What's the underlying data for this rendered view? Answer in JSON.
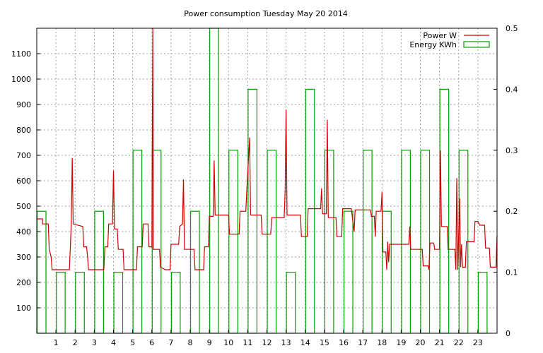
{
  "chart_data": {
    "type": "line",
    "title": "Power consumption Tuesday May 20 2014",
    "xlabel": "",
    "ylabel": "",
    "y2label": "",
    "xlim": [
      0,
      24
    ],
    "ylim": [
      0,
      1200
    ],
    "y2lim": [
      0,
      0.5
    ],
    "grid": true,
    "legend_position": "top-right",
    "x_ticks": [
      1,
      2,
      3,
      4,
      5,
      6,
      7,
      8,
      9,
      10,
      11,
      12,
      13,
      14,
      15,
      16,
      17,
      18,
      19,
      20,
      21,
      22,
      23
    ],
    "y_ticks": [
      100,
      200,
      300,
      400,
      500,
      600,
      700,
      800,
      900,
      1000,
      1100
    ],
    "y2_ticks": [
      0,
      0.1,
      0.2,
      0.3,
      0.4,
      0.5
    ],
    "series": [
      {
        "name": "Power W",
        "axis": "y",
        "color": "#d00000",
        "points": [
          [
            0,
            450
          ],
          [
            0.3,
            450
          ],
          [
            0.3,
            430
          ],
          [
            0.6,
            430
          ],
          [
            0.65,
            330
          ],
          [
            0.75,
            300
          ],
          [
            0.8,
            250
          ],
          [
            1.7,
            250
          ],
          [
            1.75,
            340
          ],
          [
            1.8,
            430
          ],
          [
            1.85,
            690
          ],
          [
            1.9,
            430
          ],
          [
            2.4,
            420
          ],
          [
            2.45,
            340
          ],
          [
            2.6,
            340
          ],
          [
            2.65,
            300
          ],
          [
            2.7,
            250
          ],
          [
            3.5,
            250
          ],
          [
            3.55,
            340
          ],
          [
            3.7,
            340
          ],
          [
            3.75,
            430
          ],
          [
            3.95,
            430
          ],
          [
            4.0,
            640
          ],
          [
            4.05,
            410
          ],
          [
            4.2,
            410
          ],
          [
            4.25,
            330
          ],
          [
            4.5,
            330
          ],
          [
            4.55,
            250
          ],
          [
            5.2,
            250
          ],
          [
            5.25,
            340
          ],
          [
            5.5,
            340
          ],
          [
            5.55,
            430
          ],
          [
            5.8,
            430
          ],
          [
            5.85,
            340
          ],
          [
            6.0,
            340
          ],
          [
            6.05,
            1200
          ],
          [
            6.08,
            330
          ],
          [
            6.4,
            330
          ],
          [
            6.45,
            260
          ],
          [
            6.7,
            250
          ],
          [
            6.95,
            250
          ],
          [
            7.0,
            350
          ],
          [
            7.4,
            350
          ],
          [
            7.45,
            420
          ],
          [
            7.6,
            430
          ],
          [
            7.65,
            605
          ],
          [
            7.7,
            330
          ],
          [
            8.2,
            330
          ],
          [
            8.25,
            250
          ],
          [
            8.7,
            250
          ],
          [
            8.75,
            340
          ],
          [
            8.95,
            340
          ],
          [
            9.0,
            460
          ],
          [
            9.2,
            460
          ],
          [
            9.25,
            680
          ],
          [
            9.3,
            465
          ],
          [
            10.0,
            465
          ],
          [
            10.05,
            390
          ],
          [
            10.55,
            390
          ],
          [
            10.6,
            480
          ],
          [
            10.9,
            480
          ],
          [
            10.95,
            560
          ],
          [
            11.1,
            770
          ],
          [
            11.15,
            465
          ],
          [
            11.7,
            465
          ],
          [
            11.75,
            390
          ],
          [
            12.2,
            390
          ],
          [
            12.25,
            455
          ],
          [
            12.9,
            455
          ],
          [
            12.95,
            560
          ],
          [
            13.0,
            880
          ],
          [
            13.05,
            465
          ],
          [
            13.75,
            465
          ],
          [
            13.8,
            380
          ],
          [
            14.1,
            380
          ],
          [
            14.15,
            490
          ],
          [
            14.8,
            490
          ],
          [
            14.85,
            570
          ],
          [
            14.9,
            470
          ],
          [
            15.1,
            470
          ],
          [
            15.15,
            840
          ],
          [
            15.2,
            455
          ],
          [
            15.6,
            455
          ],
          [
            15.65,
            380
          ],
          [
            15.9,
            380
          ],
          [
            15.95,
            490
          ],
          [
            16.4,
            490
          ],
          [
            16.45,
            460
          ],
          [
            16.55,
            400
          ],
          [
            16.6,
            485
          ],
          [
            17.4,
            485
          ],
          [
            17.45,
            460
          ],
          [
            17.6,
            460
          ],
          [
            17.65,
            380
          ],
          [
            17.7,
            480
          ],
          [
            17.95,
            480
          ],
          [
            18.0,
            555
          ],
          [
            18.05,
            320
          ],
          [
            18.2,
            320
          ],
          [
            18.25,
            250
          ],
          [
            18.3,
            360
          ],
          [
            18.35,
            280
          ],
          [
            18.4,
            350
          ],
          [
            19.4,
            350
          ],
          [
            19.45,
            420
          ],
          [
            19.5,
            330
          ],
          [
            20.1,
            330
          ],
          [
            20.15,
            265
          ],
          [
            20.4,
            265
          ],
          [
            20.45,
            250
          ],
          [
            20.5,
            355
          ],
          [
            20.7,
            355
          ],
          [
            20.75,
            330
          ],
          [
            21.0,
            330
          ],
          [
            21.05,
            720
          ],
          [
            21.1,
            420
          ],
          [
            21.4,
            420
          ],
          [
            21.45,
            330
          ],
          [
            21.8,
            330
          ],
          [
            21.85,
            250
          ],
          [
            21.9,
            610
          ],
          [
            21.95,
            250
          ],
          [
            22.05,
            530
          ],
          [
            22.1,
            260
          ],
          [
            22.15,
            350
          ],
          [
            22.2,
            260
          ],
          [
            22.35,
            260
          ],
          [
            22.4,
            360
          ],
          [
            22.8,
            360
          ],
          [
            22.85,
            440
          ],
          [
            23.0,
            440
          ],
          [
            23.1,
            425
          ],
          [
            23.35,
            425
          ],
          [
            23.4,
            335
          ],
          [
            23.6,
            335
          ],
          [
            23.65,
            260
          ],
          [
            23.95,
            260
          ],
          [
            24.0,
            385
          ]
        ]
      },
      {
        "name": "Energy KWh",
        "axis": "y2",
        "color": "#00a000",
        "bar_x": [
          0,
          1,
          2,
          3,
          4,
          5,
          6,
          7,
          8,
          9,
          10,
          11,
          12,
          13,
          14,
          15,
          16,
          17,
          18,
          19,
          20,
          21,
          22,
          23
        ],
        "values": [
          0.2,
          0.1,
          0.1,
          0.2,
          0.1,
          0.3,
          0.3,
          0.1,
          0.2,
          0.5,
          0.3,
          0.4,
          0.3,
          0.1,
          0.4,
          0.3,
          0.2,
          0.3,
          0.2,
          0.3,
          0.3,
          0.4,
          0.3,
          0.1
        ]
      }
    ]
  }
}
